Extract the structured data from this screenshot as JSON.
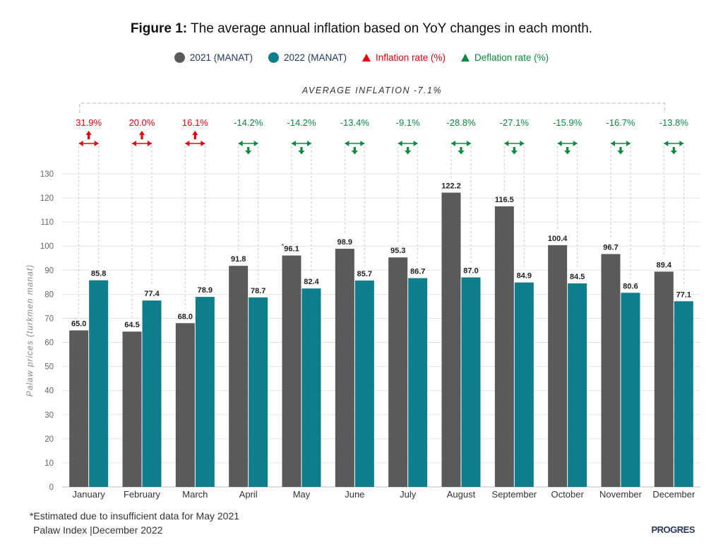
{
  "title_bold": "Figure 1:",
  "title_rest": " The average annual inflation based on YoY changes in each month.",
  "legend": [
    {
      "label": "2021 (MANAT)",
      "color": "#5a5a5a",
      "text_color": "#1f3864",
      "shape": "dot"
    },
    {
      "label": "2022 (MANAT)",
      "color": "#0e7d8c",
      "text_color": "#1f3864",
      "shape": "dot"
    },
    {
      "label": "Inflation rate (%)",
      "color": "#e8000b",
      "text_color": "#e8000b",
      "shape": "triangle-up"
    },
    {
      "label": "Deflation rate (%)",
      "color": "#0a8a3e",
      "text_color": "#0a8a3e",
      "shape": "triangle-up"
    }
  ],
  "avg_inflation_label": "AVERAGE INFLATION -7.1%",
  "footnote": "Estimated due to insufficient data for May 2021",
  "footnote_marker": "*",
  "source": "Palaw Index |December 2022",
  "brand": "PROGRES",
  "colors": {
    "c2021": "#5a5a5a",
    "c2022": "#0e7d8c",
    "inflation": "#e8000b",
    "deflation": "#0a8a3e",
    "grid": "#e3e3e3"
  },
  "chart_data": {
    "type": "bar",
    "categories": [
      "January",
      "February",
      "March",
      "April",
      "May",
      "June",
      "July",
      "August",
      "September",
      "October",
      "November",
      "December"
    ],
    "series": [
      {
        "name": "2021 (MANAT)",
        "values": [
          65.0,
          64.5,
          68.0,
          91.8,
          96.1,
          98.9,
          95.3,
          122.2,
          116.5,
          100.4,
          96.7,
          89.4
        ]
      },
      {
        "name": "2022 (MANAT)",
        "values": [
          85.8,
          77.4,
          78.9,
          78.7,
          82.4,
          85.7,
          86.7,
          87.0,
          84.9,
          84.5,
          80.6,
          77.1
        ]
      }
    ],
    "value_labels_2021": [
      "65.0",
      "64.5",
      "68.0",
      "91.8",
      "96.1",
      "98.9",
      "95.3",
      "122.2",
      "116.5",
      "100.4",
      "96.7",
      "89.4"
    ],
    "value_labels_2022": [
      "85.8",
      "77.4",
      "78.9",
      "78.7",
      "82.4",
      "85.7",
      "86.7",
      "87.0",
      "84.9",
      "84.5",
      "80.6",
      "77.1"
    ],
    "rates": [
      31.9,
      20.0,
      16.1,
      -14.2,
      -14.2,
      -13.4,
      -9.1,
      -28.8,
      -27.1,
      -15.9,
      -16.7,
      -13.8
    ],
    "rate_labels": [
      "31.9%",
      "20.0%",
      "16.1%",
      "-14.2%",
      "-14.2%",
      "-13.4%",
      "-9.1%",
      "-28.8%",
      "-27.1%",
      "-15.9%",
      "-16.7%",
      "-13.8%"
    ],
    "estimated_marker_index": 4,
    "ylabel": "Palaw prices (turkmen manat)",
    "ylim": [
      0,
      130
    ],
    "yticks": [
      "0",
      "10",
      "20",
      "30",
      "40",
      "50",
      "60",
      "70",
      "80",
      "90",
      "100",
      "110",
      "120",
      "130"
    ],
    "grid": true
  }
}
